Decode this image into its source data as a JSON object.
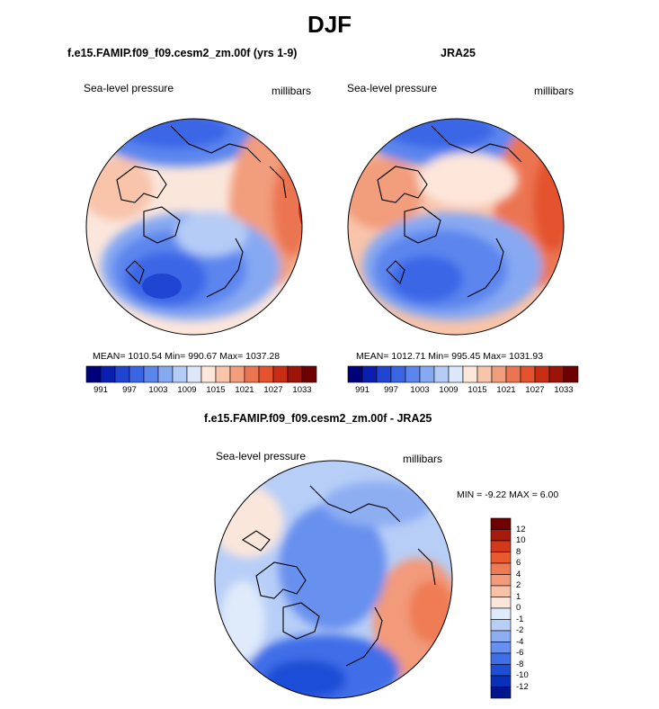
{
  "title": "DJF",
  "panels": {
    "model": {
      "title": "f.e15.FAMIP.f09_f09.cesm2_zm.00f (yrs 1-9)",
      "field": "Sea-level pressure",
      "units": "millibars",
      "stats": "MEAN= 1010.54  Min= 990.67  Max= 1037.28"
    },
    "obs": {
      "title": "JRA25",
      "field": "Sea-level pressure",
      "units": "millibars",
      "stats": "MEAN= 1012.71  Min= 995.45  Max= 1031.93"
    },
    "diff": {
      "title": "f.e15.FAMIP.f09_f09.cesm2_zm.00f - JRA25",
      "field": "Sea-level pressure",
      "units": "millibars",
      "stats": "MIN =  -9.22 MAX =    6.00"
    }
  },
  "colorbar_abs": {
    "colors": [
      "#00007a",
      "#0a1fb0",
      "#1f45d2",
      "#3a66e6",
      "#5b86ee",
      "#87a9f2",
      "#b5ccf7",
      "#dce8fa",
      "#fde6da",
      "#f8c4aa",
      "#f29d7b",
      "#ec7551",
      "#e4522e",
      "#c72e14",
      "#9c1408",
      "#6e0000"
    ],
    "ticks": [
      "991",
      "997",
      "1003",
      "1009",
      "1015",
      "1021",
      "1027",
      "1033"
    ]
  },
  "colorbar_diff": {
    "colors": [
      "#6e0000",
      "#a81a0a",
      "#d2381a",
      "#ea5a31",
      "#ef7b55",
      "#f29a7a",
      "#f7c2a7",
      "#fbe6dc",
      "#dfeafb",
      "#b7cef7",
      "#8eaef2",
      "#6890ee",
      "#3f6ee8",
      "#1f4ed6",
      "#0a30ba",
      "#00148c"
    ],
    "ticks": [
      "12",
      "10",
      "8",
      "6",
      "4",
      "2",
      "1",
      "0",
      "-1",
      "-2",
      "-4",
      "-6",
      "-8",
      "-10",
      "-12"
    ]
  }
}
